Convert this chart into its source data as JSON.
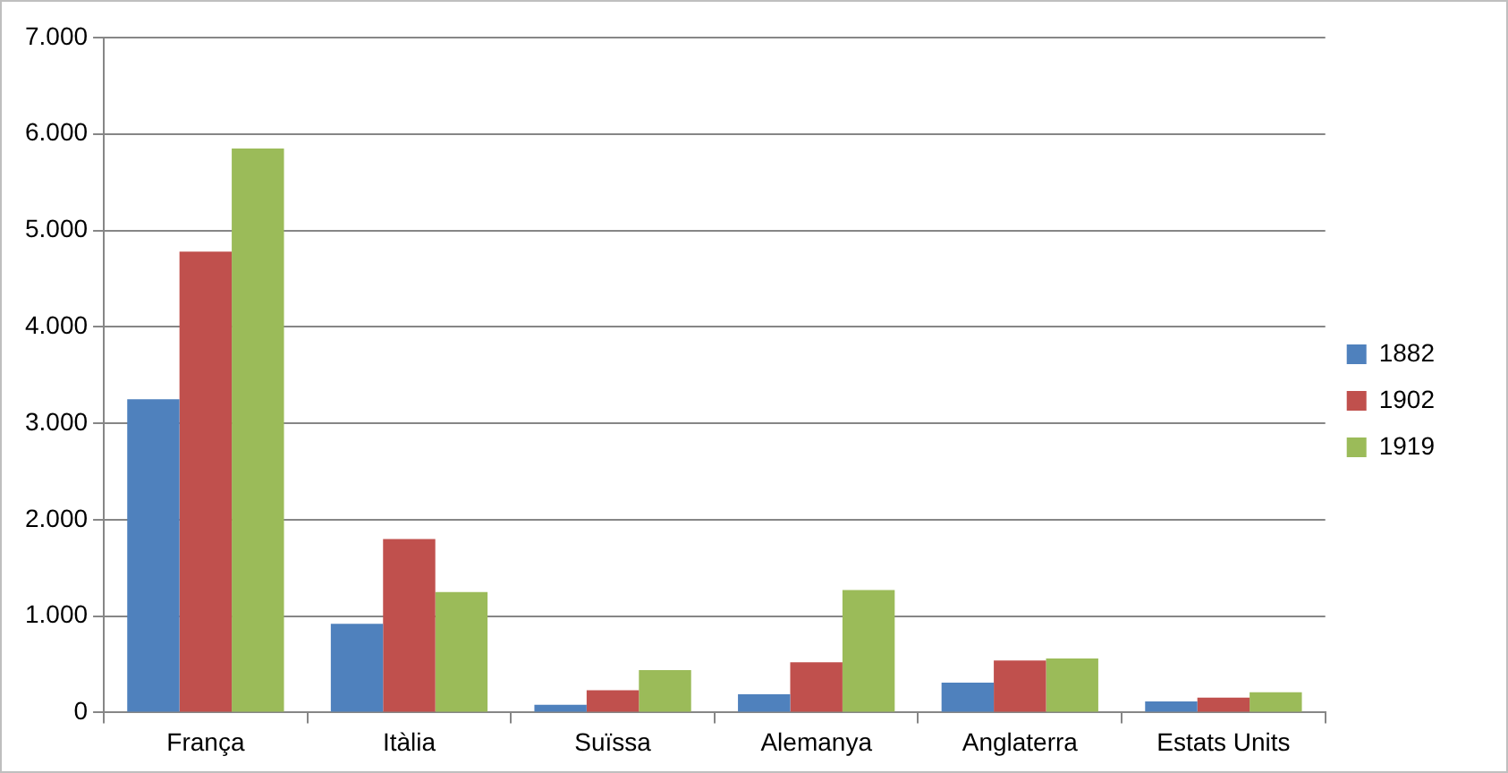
{
  "chart_data": {
    "type": "bar",
    "categories": [
      "França",
      "Itàlia",
      "Suïssa",
      "Alemanya",
      "Anglaterra",
      "Estats Units"
    ],
    "series": [
      {
        "name": "1882",
        "color": "#4f81bd",
        "values": [
          3250,
          920,
          80,
          190,
          310,
          115
        ]
      },
      {
        "name": "1902",
        "color": "#c0504d",
        "values": [
          4780,
          1800,
          230,
          520,
          540,
          155
        ]
      },
      {
        "name": "1919",
        "color": "#9bbb59",
        "values": [
          5850,
          1250,
          440,
          1270,
          560,
          210
        ]
      }
    ],
    "ylim": [
      0,
      7000
    ],
    "yticks": [
      {
        "value": 0,
        "label": "0"
      },
      {
        "value": 1000,
        "label": "1.000"
      },
      {
        "value": 2000,
        "label": "2.000"
      },
      {
        "value": 3000,
        "label": "3.000"
      },
      {
        "value": 4000,
        "label": "4.000"
      },
      {
        "value": 5000,
        "label": "5.000"
      },
      {
        "value": 6000,
        "label": "6.000"
      },
      {
        "value": 7000,
        "label": "7.000"
      }
    ],
    "grid": "y",
    "legend": "right"
  }
}
